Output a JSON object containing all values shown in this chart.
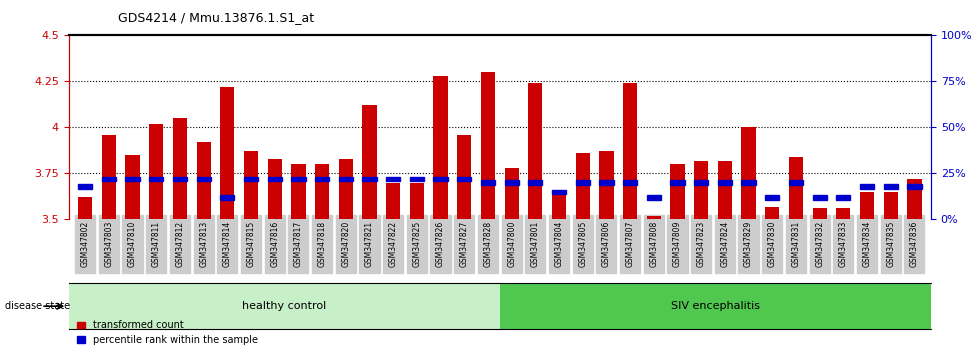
{
  "title": "GDS4214 / Mmu.13876.1.S1_at",
  "samples": [
    "GSM347802",
    "GSM347803",
    "GSM347810",
    "GSM347811",
    "GSM347812",
    "GSM347813",
    "GSM347814",
    "GSM347815",
    "GSM347816",
    "GSM347817",
    "GSM347818",
    "GSM347820",
    "GSM347821",
    "GSM347822",
    "GSM347825",
    "GSM347826",
    "GSM347827",
    "GSM347828",
    "GSM347800",
    "GSM347801",
    "GSM347804",
    "GSM347805",
    "GSM347806",
    "GSM347807",
    "GSM347808",
    "GSM347809",
    "GSM347823",
    "GSM347824",
    "GSM347829",
    "GSM347830",
    "GSM347831",
    "GSM347832",
    "GSM347833",
    "GSM347834",
    "GSM347835",
    "GSM347836"
  ],
  "transformed_count": [
    3.62,
    3.96,
    3.85,
    4.02,
    4.05,
    3.92,
    4.22,
    3.87,
    3.83,
    3.8,
    3.8,
    3.83,
    4.12,
    3.7,
    3.7,
    4.28,
    3.96,
    4.3,
    3.78,
    4.24,
    3.65,
    3.86,
    3.87,
    4.24,
    3.52,
    3.8,
    3.82,
    3.82,
    4.0,
    3.57,
    3.84,
    3.56,
    3.56,
    3.65,
    3.65,
    3.72
  ],
  "percentile_rank": [
    18,
    22,
    22,
    22,
    22,
    22,
    12,
    22,
    22,
    22,
    22,
    22,
    22,
    22,
    22,
    22,
    22,
    20,
    20,
    20,
    15,
    20,
    20,
    20,
    12,
    20,
    20,
    20,
    20,
    12,
    20,
    12,
    12,
    18,
    18,
    18
  ],
  "healthy_control_count": 18,
  "bar_bottom": 3.5,
  "ylim": [
    3.5,
    4.5
  ],
  "right_ylim": [
    0,
    100
  ],
  "bar_color": "#cc0000",
  "percentile_color": "#0000cc",
  "healthy_color": "#c8f0c8",
  "siv_color": "#50c850",
  "title_color": "#000000",
  "left_axis_color": "#cc0000",
  "right_axis_color": "#0000cc"
}
